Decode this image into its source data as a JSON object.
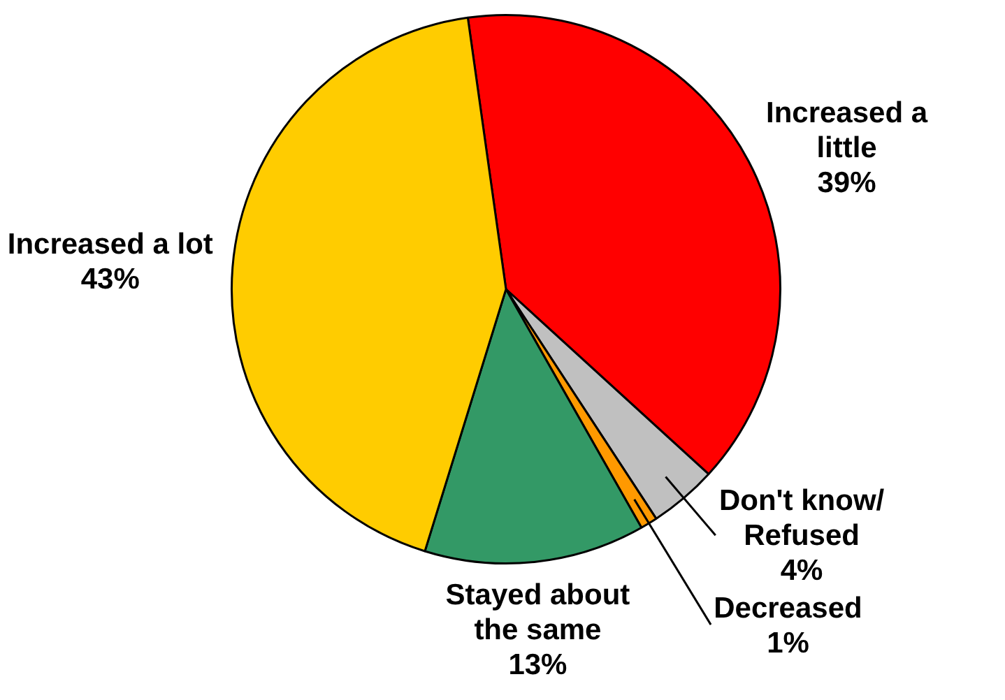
{
  "chart_data": {
    "type": "pie",
    "categories": [
      "Increased a little",
      "Don't know/ Refused",
      "Decreased",
      "Stayed about the same",
      "Increased a lot"
    ],
    "values": [
      39,
      4,
      1,
      13,
      43
    ],
    "colors": [
      "#ff0000",
      "#c0c0c0",
      "#ff9900",
      "#339966",
      "#ffcc00"
    ],
    "value_labels": [
      "39%",
      "4%",
      "1%",
      "13%",
      "43%"
    ],
    "legend": false
  }
}
